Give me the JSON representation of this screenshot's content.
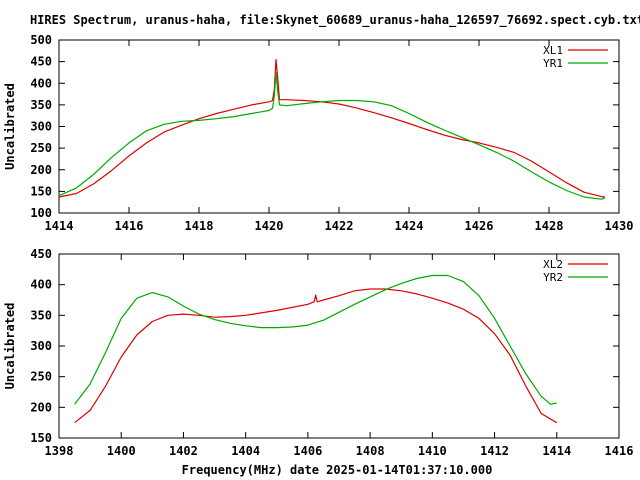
{
  "chart_data": [
    {
      "type": "line",
      "title": "HIRES Spectrum, uranus-haha, file:Skynet_60689_uranus-haha_126597_76692.spect.cyb.txt",
      "xlabel": "",
      "ylabel": "Uncalibrated",
      "xlim": [
        1414,
        1430
      ],
      "ylim": [
        100,
        500
      ],
      "xticks": [
        "1414",
        "1416",
        "1418",
        "1420",
        "1422",
        "1424",
        "1426",
        "1428",
        "1430"
      ],
      "yticks": [
        "100",
        "150",
        "200",
        "250",
        "300",
        "350",
        "400",
        "450",
        "500"
      ],
      "legend_position": "top-right",
      "grid": false,
      "series": [
        {
          "name": "XL1",
          "color": "#dd0000",
          "points": [
            [
              1414.0,
              137
            ],
            [
              1414.5,
              145
            ],
            [
              1415.0,
              168
            ],
            [
              1415.5,
              198
            ],
            [
              1416.0,
              232
            ],
            [
              1416.5,
              262
            ],
            [
              1417.0,
              287
            ],
            [
              1417.5,
              303
            ],
            [
              1418.0,
              318
            ],
            [
              1418.5,
              330
            ],
            [
              1419.0,
              340
            ],
            [
              1419.5,
              350
            ],
            [
              1420.0,
              357
            ],
            [
              1420.1,
              360
            ],
            [
              1420.15,
              385
            ],
            [
              1420.2,
              455
            ],
            [
              1420.25,
              410
            ],
            [
              1420.3,
              362
            ],
            [
              1420.5,
              362
            ],
            [
              1421.0,
              360
            ],
            [
              1421.5,
              357
            ],
            [
              1422.0,
              352
            ],
            [
              1422.5,
              343
            ],
            [
              1423.0,
              332
            ],
            [
              1423.5,
              320
            ],
            [
              1424.0,
              307
            ],
            [
              1424.5,
              293
            ],
            [
              1425.0,
              280
            ],
            [
              1425.5,
              270
            ],
            [
              1426.0,
              262
            ],
            [
              1426.5,
              252
            ],
            [
              1427.0,
              240
            ],
            [
              1427.5,
              220
            ],
            [
              1428.0,
              195
            ],
            [
              1428.5,
              170
            ],
            [
              1429.0,
              148
            ],
            [
              1429.5,
              138
            ],
            [
              1429.6,
              137
            ]
          ]
        },
        {
          "name": "YR1",
          "color": "#00aa00",
          "points": [
            [
              1414.0,
              140
            ],
            [
              1414.5,
              158
            ],
            [
              1415.0,
              190
            ],
            [
              1415.5,
              228
            ],
            [
              1416.0,
              262
            ],
            [
              1416.5,
              290
            ],
            [
              1417.0,
              305
            ],
            [
              1417.5,
              312
            ],
            [
              1418.0,
              314
            ],
            [
              1418.5,
              318
            ],
            [
              1419.0,
              323
            ],
            [
              1419.5,
              330
            ],
            [
              1420.0,
              337
            ],
            [
              1420.1,
              342
            ],
            [
              1420.15,
              370
            ],
            [
              1420.2,
              425
            ],
            [
              1420.25,
              380
            ],
            [
              1420.3,
              350
            ],
            [
              1420.5,
              348
            ],
            [
              1421.0,
              353
            ],
            [
              1421.5,
              357
            ],
            [
              1422.0,
              360
            ],
            [
              1422.5,
              360
            ],
            [
              1423.0,
              357
            ],
            [
              1423.5,
              348
            ],
            [
              1424.0,
              330
            ],
            [
              1424.5,
              310
            ],
            [
              1425.0,
              292
            ],
            [
              1425.5,
              275
            ],
            [
              1426.0,
              258
            ],
            [
              1426.5,
              240
            ],
            [
              1427.0,
              220
            ],
            [
              1427.5,
              195
            ],
            [
              1428.0,
              172
            ],
            [
              1428.5,
              152
            ],
            [
              1429.0,
              137
            ],
            [
              1429.5,
              132
            ],
            [
              1429.6,
              135
            ]
          ]
        }
      ]
    },
    {
      "type": "line",
      "title": "",
      "xlabel": "Frequency(MHz) date 2025-01-14T01:37:10.000",
      "ylabel": "Uncalibrated",
      "xlim": [
        1398,
        1416
      ],
      "ylim": [
        150,
        450
      ],
      "xticks": [
        "1398",
        "1400",
        "1402",
        "1404",
        "1406",
        "1408",
        "1410",
        "1412",
        "1414",
        "1416"
      ],
      "yticks": [
        "150",
        "200",
        "250",
        "300",
        "350",
        "400",
        "450"
      ],
      "legend_position": "top-right",
      "grid": false,
      "series": [
        {
          "name": "XL2",
          "color": "#dd0000",
          "points": [
            [
              1398.5,
              175
            ],
            [
              1399.0,
              195
            ],
            [
              1399.5,
              235
            ],
            [
              1400.0,
              282
            ],
            [
              1400.5,
              318
            ],
            [
              1401.0,
              340
            ],
            [
              1401.5,
              350
            ],
            [
              1402.0,
              352
            ],
            [
              1402.5,
              350
            ],
            [
              1403.0,
              347
            ],
            [
              1403.5,
              348
            ],
            [
              1404.0,
              350
            ],
            [
              1404.5,
              354
            ],
            [
              1405.0,
              358
            ],
            [
              1405.5,
              363
            ],
            [
              1406.0,
              368
            ],
            [
              1406.2,
              372
            ],
            [
              1406.25,
              383
            ],
            [
              1406.3,
              372
            ],
            [
              1406.5,
              375
            ],
            [
              1407.0,
              382
            ],
            [
              1407.5,
              390
            ],
            [
              1408.0,
              393
            ],
            [
              1408.5,
              393
            ],
            [
              1409.0,
              390
            ],
            [
              1409.5,
              385
            ],
            [
              1410.0,
              378
            ],
            [
              1410.5,
              370
            ],
            [
              1411.0,
              360
            ],
            [
              1411.5,
              345
            ],
            [
              1412.0,
              320
            ],
            [
              1412.5,
              285
            ],
            [
              1413.0,
              235
            ],
            [
              1413.5,
              190
            ],
            [
              1414.0,
              175
            ]
          ]
        },
        {
          "name": "YR2",
          "color": "#00aa00",
          "points": [
            [
              1398.5,
              205
            ],
            [
              1399.0,
              238
            ],
            [
              1399.5,
              290
            ],
            [
              1400.0,
              345
            ],
            [
              1400.5,
              378
            ],
            [
              1401.0,
              387
            ],
            [
              1401.5,
              380
            ],
            [
              1402.0,
              365
            ],
            [
              1402.5,
              352
            ],
            [
              1403.0,
              343
            ],
            [
              1403.5,
              337
            ],
            [
              1404.0,
              333
            ],
            [
              1404.5,
              330
            ],
            [
              1405.0,
              330
            ],
            [
              1405.5,
              331
            ],
            [
              1406.0,
              334
            ],
            [
              1406.5,
              342
            ],
            [
              1407.0,
              355
            ],
            [
              1407.5,
              368
            ],
            [
              1408.0,
              380
            ],
            [
              1408.5,
              392
            ],
            [
              1409.0,
              402
            ],
            [
              1409.5,
              410
            ],
            [
              1410.0,
              415
            ],
            [
              1410.5,
              415
            ],
            [
              1411.0,
              405
            ],
            [
              1411.5,
              382
            ],
            [
              1412.0,
              345
            ],
            [
              1412.5,
              300
            ],
            [
              1413.0,
              255
            ],
            [
              1413.5,
              218
            ],
            [
              1413.8,
              205
            ],
            [
              1414.0,
              207
            ]
          ]
        }
      ]
    }
  ]
}
